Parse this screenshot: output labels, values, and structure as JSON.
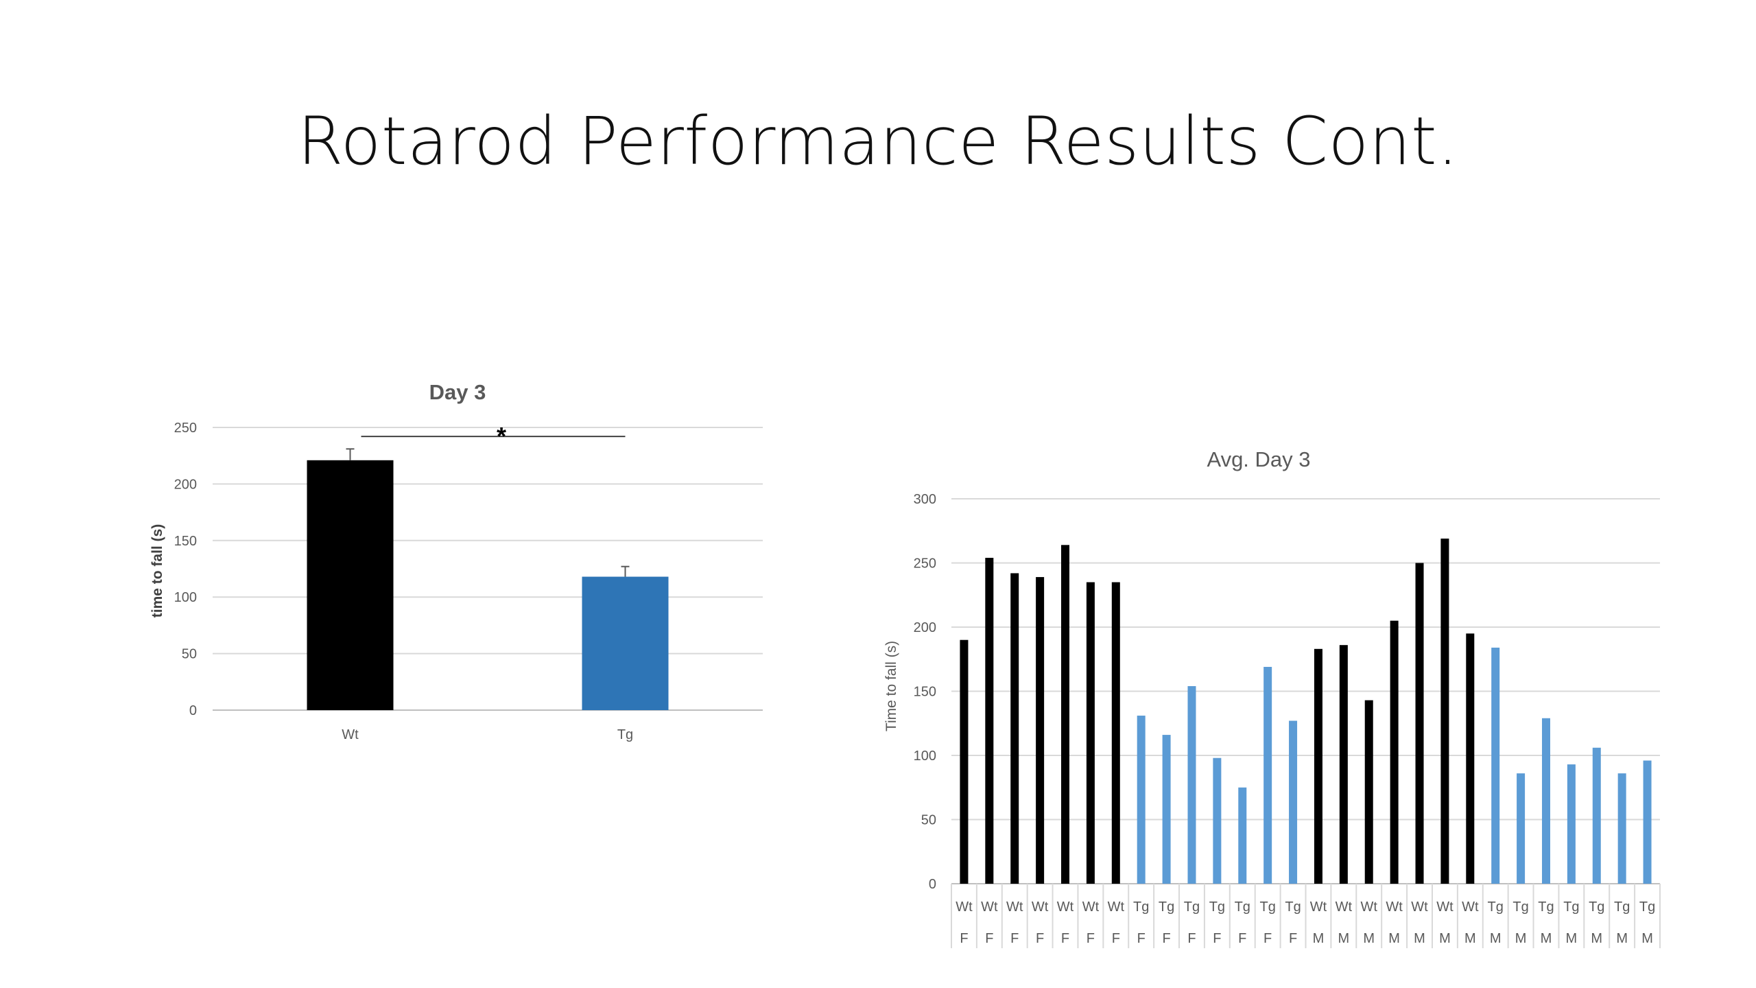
{
  "slide": {
    "title": "Rotarod Performance Results Cont."
  },
  "chart_data": [
    {
      "type": "bar",
      "title": "Day 3",
      "xlabel": "",
      "ylabel": "time to fall (s)",
      "ylim": [
        0,
        250
      ],
      "yticks": [
        0,
        50,
        100,
        150,
        200,
        250
      ],
      "grid": true,
      "categories": [
        "Wt",
        "Tg"
      ],
      "values": [
        221,
        118
      ],
      "error": [
        10,
        9
      ],
      "colors": [
        "#000000",
        "#2E75B6"
      ],
      "annotation": {
        "text": "*",
        "between": [
          "Wt",
          "Tg"
        ]
      }
    },
    {
      "type": "bar",
      "title": "Avg. Day 3",
      "xlabel": "",
      "ylabel": "Time to fall (s)",
      "ylim": [
        0,
        300
      ],
      "yticks": [
        0,
        50,
        100,
        150,
        200,
        250,
        300
      ],
      "grid": true,
      "categories": [
        "Wt",
        "Wt",
        "Wt",
        "Wt",
        "Wt",
        "Wt",
        "Wt",
        "Tg",
        "Tg",
        "Tg",
        "Tg",
        "Tg",
        "Tg",
        "Tg",
        "Wt",
        "Wt",
        "Wt",
        "Wt",
        "Wt",
        "Wt",
        "Wt",
        "Tg",
        "Tg",
        "Tg",
        "Tg",
        "Tg",
        "Tg",
        "Tg"
      ],
      "subcategories": [
        "F",
        "F",
        "F",
        "F",
        "F",
        "F",
        "F",
        "F",
        "F",
        "F",
        "F",
        "F",
        "F",
        "F",
        "M",
        "M",
        "M",
        "M",
        "M",
        "M",
        "M",
        "M",
        "M",
        "M",
        "M",
        "M",
        "M",
        "M"
      ],
      "values": [
        190,
        254,
        242,
        239,
        264,
        235,
        235,
        131,
        116,
        154,
        98,
        75,
        169,
        127,
        183,
        186,
        143,
        205,
        250,
        269,
        195,
        184,
        86,
        129,
        93,
        106,
        86,
        96
      ],
      "colors": {
        "Wt": "#000000",
        "Tg": "#5B9BD5"
      }
    }
  ]
}
